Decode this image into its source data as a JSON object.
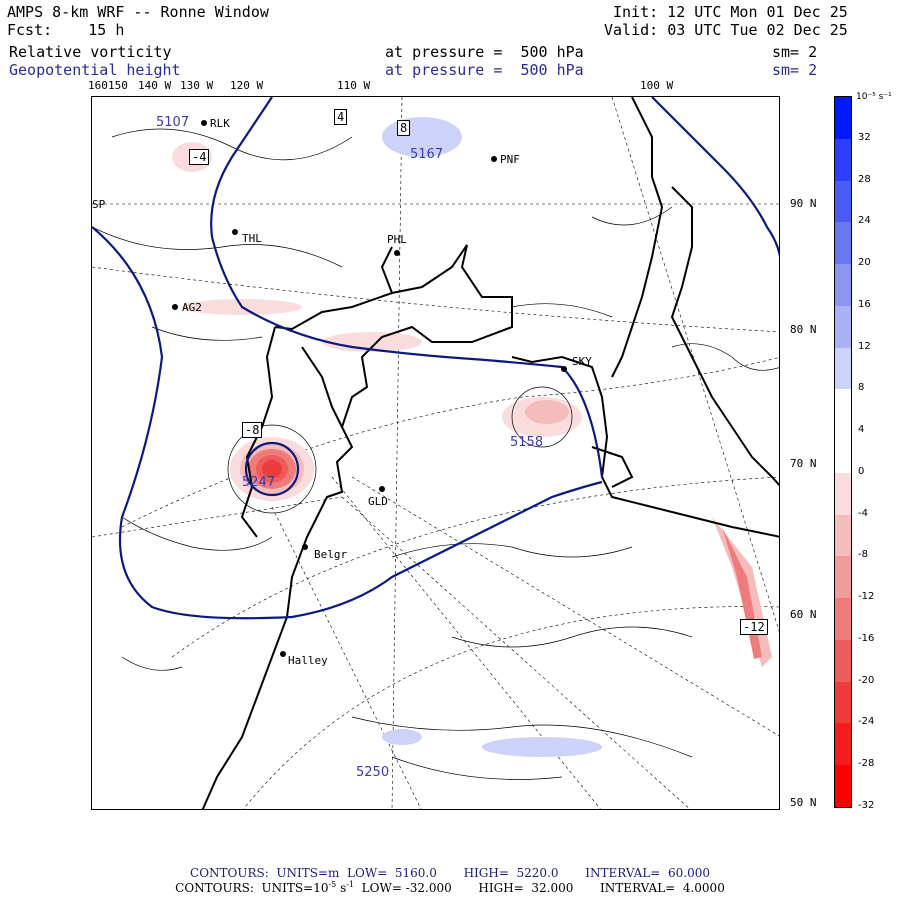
{
  "header": {
    "title": "AMPS 8-km WRF -- Ronne Window",
    "fcst_label": "Fcst:",
    "fcst_value": "15 h",
    "init": "Init: 12 UTC Mon 01 Dec 25",
    "valid": "Valid: 03 UTC Tue 02 Dec 25",
    "field1_name": "Relative vorticity",
    "field1_level": "at pressure =  500 hPa",
    "field1_sm": "sm= 2",
    "field2_name": "Geopotential height",
    "field2_level": "at pressure =  500 hPa",
    "field2_sm": "sm= 2"
  },
  "lon_labels": [
    "160",
    "150",
    "140 W",
    "130 W",
    "120 W",
    "110 W",
    "100 W"
  ],
  "lat_labels": [
    "90 N",
    "80 N",
    "70 N",
    "60 N",
    "50 N"
  ],
  "stations": [
    "RLK",
    "PNF",
    "THL",
    "PHL",
    "AG2",
    "SKY",
    "GLD",
    "Belgr",
    "Halley",
    "SP"
  ],
  "height_labels": [
    "5107",
    "5167",
    "5247",
    "5158",
    "5250"
  ],
  "contour_labels": [
    "-4",
    "4",
    "8",
    "-8",
    "-12"
  ],
  "colorbar": {
    "unit": "10⁻⁵ s⁻¹",
    "ticks": [
      "32",
      "28",
      "24",
      "20",
      "16",
      "12",
      "8",
      "4",
      "0",
      "-4",
      "-8",
      "-12",
      "-16",
      "-20",
      "-24",
      "-28",
      "-32"
    ],
    "colors": [
      "#0019ff",
      "#2a3fff",
      "#4a5cf5",
      "#6a78f0",
      "#8b95f2",
      "#aab2f5",
      "#cdd2f8",
      "#ffffff",
      "#ffffff",
      "#fbdcdc",
      "#f5bcbc",
      "#f19c9c",
      "#ee7c7c",
      "#ec5c5c",
      "#ee3c3c",
      "#f41c1c",
      "#ff0000"
    ]
  },
  "footer": {
    "line1": "CONTOURS:  UNITS=m  LOW=  5160.0       HIGH=  5220.0       INTERVAL=  60.000",
    "line2_a": "CONTOURS:  UNITS=10",
    "line2_b": "-5",
    "line2_c": " s",
    "line2_d": "-1",
    "line2_e": "  LOW= -32.000       HIGH=  32.000       INTERVAL=  4.0000"
  }
}
